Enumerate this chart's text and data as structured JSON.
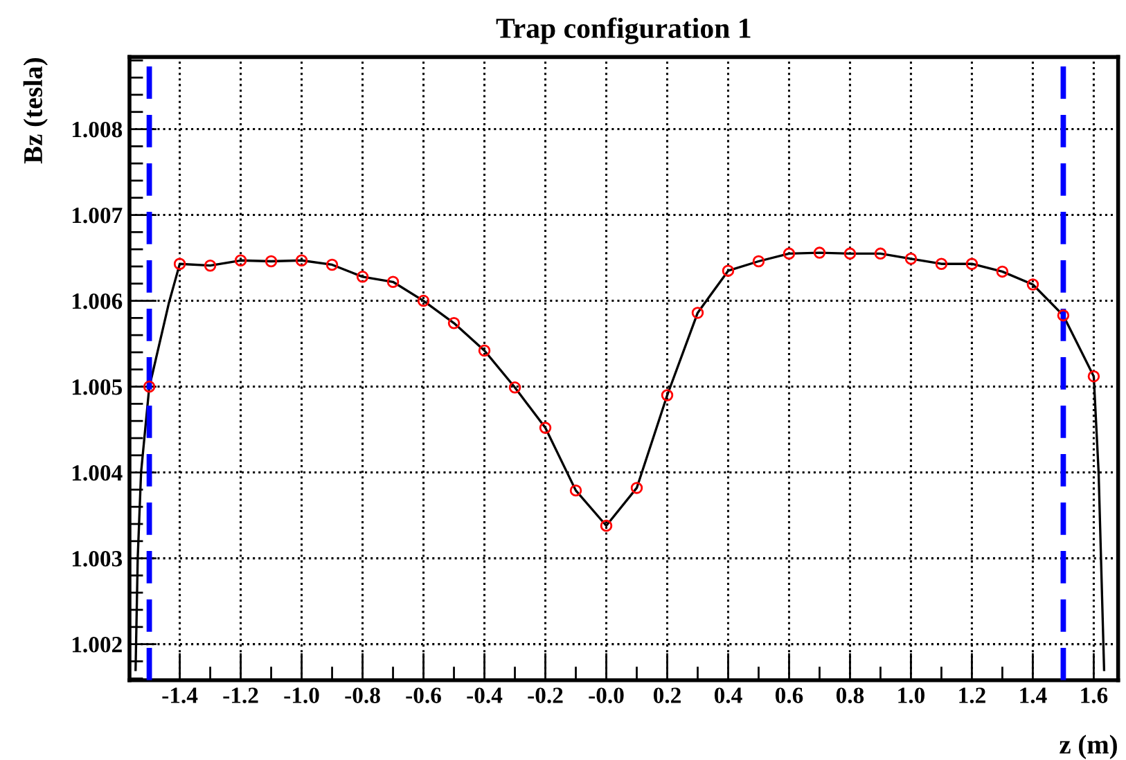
{
  "chart_data": {
    "type": "line",
    "title": "Trap configuration 1",
    "xlabel": "z (m)",
    "ylabel": "Bz (tesla)",
    "xlim": [
      -1.565,
      1.68
    ],
    "ylim": [
      1.00158,
      1.00884
    ],
    "xticks": [
      -1.4,
      -1.2,
      {
        "value": -1,
        "label": "-1.0"
      },
      -0.8,
      -0.6,
      -0.4,
      -0.2,
      {
        "value": 0,
        "label": "-0.0"
      },
      0.2,
      0.4,
      0.6,
      0.8,
      {
        "value": 1,
        "label": "1.0"
      },
      1.2,
      1.4,
      1.6
    ],
    "yticks": [
      1.002,
      1.003,
      1.004,
      1.005,
      1.006,
      1.007,
      1.008
    ],
    "grid": true,
    "series": [
      {
        "color": "#000000",
        "marker": "none",
        "line_style": "solid",
        "x": [
          -1.545,
          -1.538,
          -1.527,
          -1.5,
          -1.489,
          -1.436,
          -1.4,
          -1.3,
          -1.2,
          -1.1,
          -1.0,
          -0.9,
          -0.8,
          -0.7,
          -0.6,
          -0.5,
          -0.4,
          -0.3,
          -0.2,
          -0.1,
          0.0,
          0.1,
          0.2,
          0.3,
          0.4,
          0.5,
          0.6,
          0.7,
          0.8,
          0.9,
          1.0,
          1.1,
          1.2,
          1.3,
          1.4,
          1.5,
          1.6,
          1.616,
          1.634
        ],
        "values": [
          1.0017,
          1.003,
          1.004,
          1.005,
          1.00516,
          1.00597,
          1.00643,
          1.00641,
          1.00647,
          1.00646,
          1.00647,
          1.00642,
          1.00628,
          1.00622,
          1.006,
          1.00574,
          1.00542,
          1.00499,
          1.00452,
          1.00379,
          1.00338,
          1.00382,
          1.0049,
          1.00586,
          1.00635,
          1.00646,
          1.00655,
          1.00656,
          1.00655,
          1.00655,
          1.00649,
          1.00643,
          1.00643,
          1.00634,
          1.00619,
          1.00583,
          1.00512,
          1.004,
          1.0017
        ]
      },
      {
        "type": "scatter",
        "color": "#ff0000",
        "marker": "circle",
        "x": [
          -1.5,
          -1.4,
          -1.3,
          -1.2,
          -1.1,
          -1.0,
          -0.9,
          -0.8,
          -0.7,
          -0.6,
          -0.5,
          -0.4,
          -0.3,
          -0.2,
          -0.1,
          0.0,
          0.1,
          0.2,
          0.3,
          0.4,
          0.5,
          0.6,
          0.7,
          0.8,
          0.9,
          1.0,
          1.1,
          1.2,
          1.3,
          1.4,
          1.5,
          1.6
        ],
        "values": [
          1.005,
          1.00643,
          1.00641,
          1.00647,
          1.00646,
          1.00647,
          1.00642,
          1.00628,
          1.00622,
          1.006,
          1.00574,
          1.00542,
          1.00499,
          1.00452,
          1.00379,
          1.00338,
          1.00382,
          1.0049,
          1.00586,
          1.00635,
          1.00646,
          1.00655,
          1.00656,
          1.00655,
          1.00655,
          1.00649,
          1.00643,
          1.00643,
          1.00634,
          1.00619,
          1.00583,
          1.00512
        ]
      }
    ],
    "ref_lines": [
      {
        "axis": "x",
        "value": -1.5,
        "color": "#0000ff",
        "line_style": "dashed"
      },
      {
        "axis": "x",
        "value": 1.5,
        "color": "#0000ff",
        "line_style": "dashed"
      }
    ]
  }
}
